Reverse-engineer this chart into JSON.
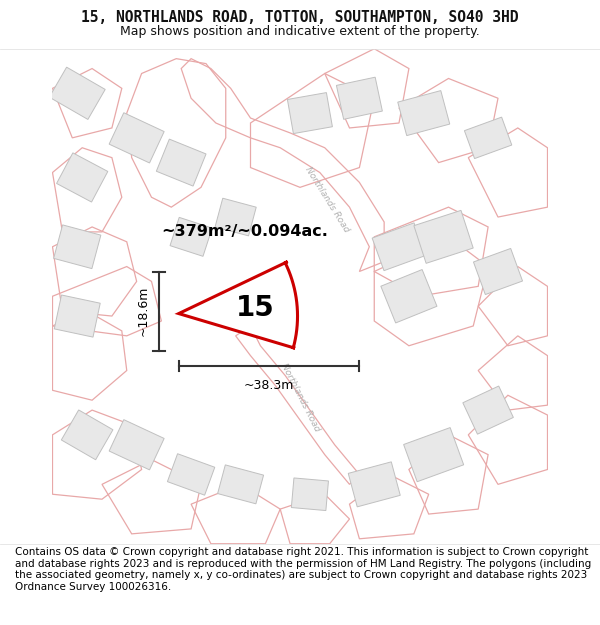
{
  "title": "15, NORTHLANDS ROAD, TOTTON, SOUTHAMPTON, SO40 3HD",
  "subtitle": "Map shows position and indicative extent of the property.",
  "footer": "Contains OS data © Crown copyright and database right 2021. This information is subject to Crown copyright and database rights 2023 and is reproduced with the permission of HM Land Registry. The polygons (including the associated geometry, namely x, y co-ordinates) are subject to Crown copyright and database rights 2023 Ordnance Survey 100026316.",
  "map_bg": "#ffffff",
  "title_fontsize": 10.5,
  "subtitle_fontsize": 9,
  "footer_fontsize": 7.5,
  "property_number": "15",
  "area_text": "~379m²/~0.094ac.",
  "width_label": "~38.3m",
  "height_label": "~18.6m",
  "road_outline_color": "#e8a8a8",
  "building_fill": "#e8e8e8",
  "building_edge": "#c0c0c0",
  "road_label_color": "#b0b0b0",
  "property_fill": "#ffffff",
  "property_edge": "#cc0000",
  "property_edge_width": 2.2,
  "dim_line_color": "#333333",
  "text_color": "#111111"
}
